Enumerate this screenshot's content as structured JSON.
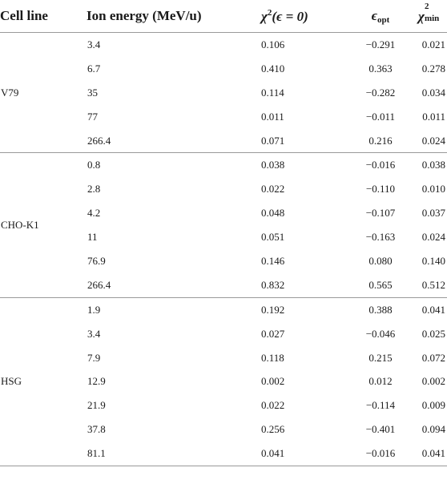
{
  "header": {
    "cell_line": "Cell line",
    "ion_energy": "Ion energy (MeV/u)",
    "chi_zero_main": "χ",
    "chi_zero_sup": "2",
    "chi_zero_arg": "(ϵ = 0)",
    "eps_main": "ϵ",
    "eps_sub": "opt",
    "chimin_main": "χ",
    "chimin_sup": "2",
    "chimin_sub": "min"
  },
  "groups": [
    {
      "cell_line": "V79",
      "rows": [
        {
          "energy": "3.4",
          "chi0": "0.106",
          "eps": "−0.291",
          "chimin": "0.021"
        },
        {
          "energy": "6.7",
          "chi0": "0.410",
          "eps": "0.363",
          "chimin": "0.278"
        },
        {
          "energy": "35",
          "chi0": "0.114",
          "eps": "−0.282",
          "chimin": "0.034"
        },
        {
          "energy": "77",
          "chi0": "0.011",
          "eps": "−0.011",
          "chimin": "0.011"
        },
        {
          "energy": "266.4",
          "chi0": "0.071",
          "eps": "0.216",
          "chimin": "0.024"
        }
      ]
    },
    {
      "cell_line": "CHO-K1",
      "rows": [
        {
          "energy": "0.8",
          "chi0": "0.038",
          "eps": "−0.016",
          "chimin": "0.038"
        },
        {
          "energy": "2.8",
          "chi0": "0.022",
          "eps": "−0.110",
          "chimin": "0.010"
        },
        {
          "energy": "4.2",
          "chi0": "0.048",
          "eps": "−0.107",
          "chimin": "0.037"
        },
        {
          "energy": "11",
          "chi0": "0.051",
          "eps": "−0.163",
          "chimin": "0.024"
        },
        {
          "energy": "76.9",
          "chi0": "0.146",
          "eps": "0.080",
          "chimin": "0.140"
        },
        {
          "energy": "266.4",
          "chi0": "0.832",
          "eps": "0.565",
          "chimin": "0.512"
        }
      ]
    },
    {
      "cell_line": "HSG",
      "rows": [
        {
          "energy": "1.9",
          "chi0": "0.192",
          "eps": "0.388",
          "chimin": "0.041"
        },
        {
          "energy": "3.4",
          "chi0": "0.027",
          "eps": "−0.046",
          "chimin": "0.025"
        },
        {
          "energy": "7.9",
          "chi0": "0.118",
          "eps": "0.215",
          "chimin": "0.072"
        },
        {
          "energy": "12.9",
          "chi0": "0.002",
          "eps": "0.012",
          "chimin": "0.002"
        },
        {
          "energy": "21.9",
          "chi0": "0.022",
          "eps": "−0.114",
          "chimin": "0.009"
        },
        {
          "energy": "37.8",
          "chi0": "0.256",
          "eps": "−0.401",
          "chimin": "0.094"
        },
        {
          "energy": "81.1",
          "chi0": "0.041",
          "eps": "−0.016",
          "chimin": "0.041"
        }
      ]
    }
  ]
}
